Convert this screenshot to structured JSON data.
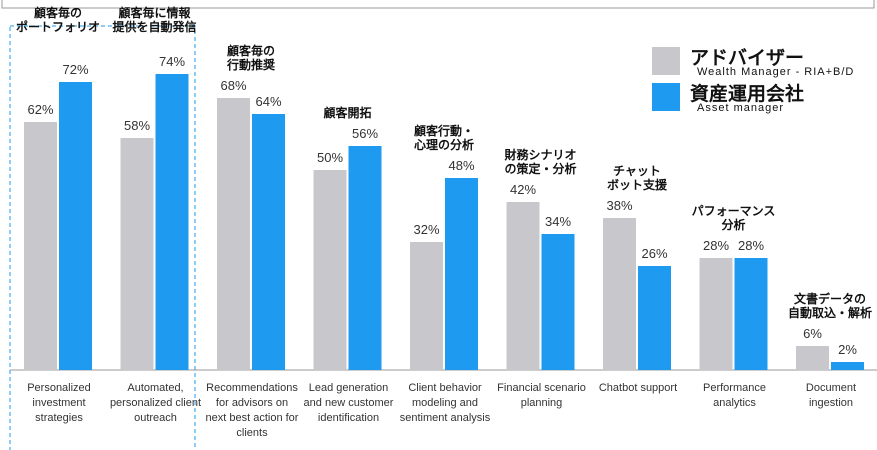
{
  "chart_data": {
    "type": "bar",
    "categories": [
      "Personalized investment strategies",
      "Automated, personalized client outreach",
      "Recommendations for advisors on next best action for clients",
      "Lead generation and new customer identification",
      "Client behavior modeling and sentiment analysis",
      "Financial scenario planning",
      "Chatbot support",
      "Performance analytics",
      "Document ingestion"
    ],
    "annotations": [
      "顧客毎の\nポートフォリオ",
      "顧客毎に情報\n提供を自動発信",
      "顧客毎の\n行動推奨",
      "顧客開拓",
      "顧客行動・\n心理の分析",
      "財務シナリオ\nの策定・分析",
      "チャット\nボット支援",
      "パフォーマンス\n分析",
      "文書データの\n自動取込・解析"
    ],
    "series": [
      {
        "name": "アドバイザー",
        "description": "Wealth Manager - RIA+B/D",
        "color": "#c8c8cc",
        "values": [
          62,
          58,
          68,
          50,
          32,
          42,
          38,
          28,
          6
        ],
        "value_labels": [
          "62%",
          "58%",
          "68%",
          "50%",
          "32%",
          "42%",
          "38%",
          "28%",
          "6%"
        ]
      },
      {
        "name": "資産運用会社",
        "description": "Asset manager",
        "color": "#1e9bf0",
        "values": [
          72,
          74,
          64,
          56,
          48,
          34,
          26,
          28,
          2
        ],
        "value_labels": [
          "72%",
          "74%",
          "64%",
          "56%",
          "48%",
          "34%",
          "26%",
          "28%",
          "2%"
        ]
      }
    ],
    "legend": "top-right"
  }
}
